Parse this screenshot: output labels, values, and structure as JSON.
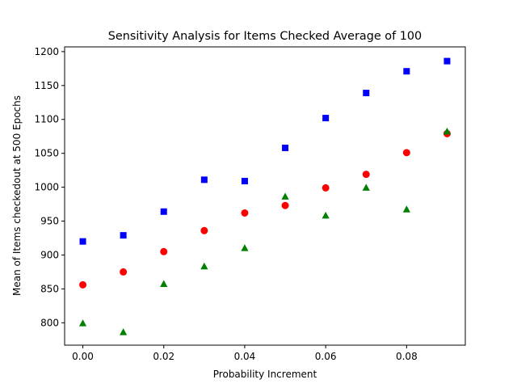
{
  "chart_data": {
    "type": "scatter",
    "title": "Sensitivity Analysis for Items Checked Average of 100",
    "xlabel": "Probability Increment",
    "ylabel": "Mean of Items checkedout at 500 Epochs",
    "xlim": [
      -0.0045,
      0.0945
    ],
    "ylim": [
      767,
      1207
    ],
    "xticks": [
      0.0,
      0.02,
      0.04,
      0.06,
      0.08
    ],
    "xtick_labels": [
      "0.00",
      "0.02",
      "0.04",
      "0.06",
      "0.08"
    ],
    "yticks": [
      800,
      850,
      900,
      950,
      1000,
      1050,
      1100,
      1150,
      1200
    ],
    "ytick_labels": [
      "800",
      "850",
      "900",
      "950",
      "1000",
      "1050",
      "1100",
      "1150",
      "1200"
    ],
    "grid": false,
    "x": [
      0.0,
      0.01,
      0.02,
      0.03,
      0.04,
      0.05,
      0.06,
      0.07,
      0.08,
      0.09
    ],
    "series": [
      {
        "marker": "square",
        "color": "#0000ff",
        "values": [
          920,
          929,
          964,
          1011,
          1009,
          1058,
          1102,
          1139,
          1171,
          1186
        ]
      },
      {
        "marker": "circle",
        "color": "#ff0000",
        "values": [
          856,
          875,
          905,
          936,
          962,
          973,
          999,
          1019,
          1051,
          1079
        ]
      },
      {
        "marker": "triangle",
        "color": "#008000",
        "values": [
          799,
          786,
          857,
          883,
          910,
          986,
          958,
          999,
          967,
          1082
        ]
      }
    ]
  }
}
